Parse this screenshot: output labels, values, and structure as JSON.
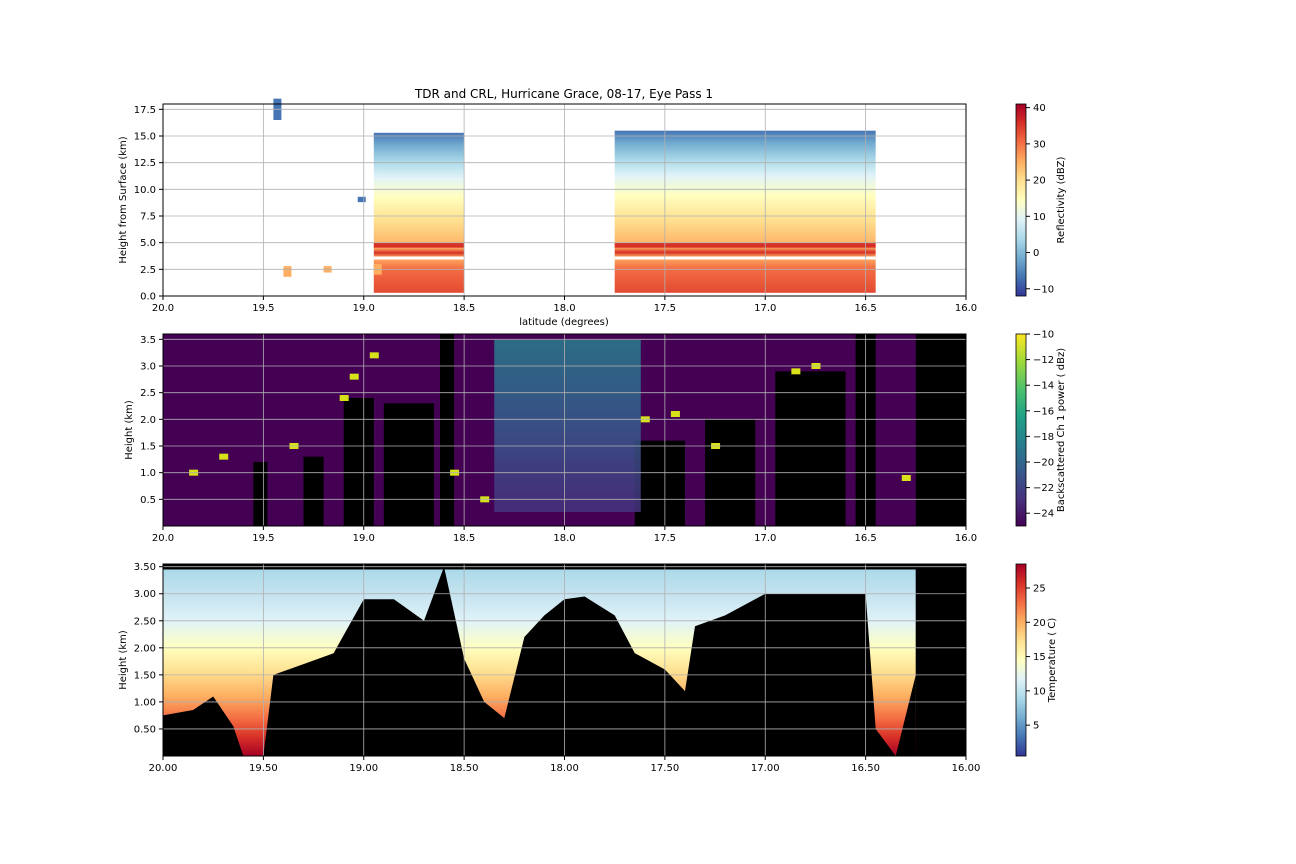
{
  "chart_data": [
    {
      "type": "heatmap",
      "title": "TDR and CRL, Hurricane Grace, 08-17, Eye Pass 1",
      "xlabel": "latitude (degrees)",
      "ylabel": "Height from Surface (km)",
      "xlim": [
        20.0,
        16.0
      ],
      "ylim": [
        0.0,
        18.0
      ],
      "xticks": [
        "20.0",
        "19.5",
        "19.0",
        "18.5",
        "18.0",
        "17.5",
        "17.0",
        "16.5",
        "16.0"
      ],
      "yticks": [
        "0.0",
        "2.5",
        "5.0",
        "7.5",
        "10.0",
        "12.5",
        "15.0",
        "17.5"
      ],
      "grid": true,
      "colorbar": {
        "label": "Reflectivity (dBZ)",
        "range": [
          -12,
          41
        ],
        "ticks": [
          "−10",
          "0",
          "10",
          "20",
          "30",
          "40"
        ],
        "colormap": "RdYlBu_r"
      },
      "blocks": [
        {
          "lat_from": 18.95,
          "lat_to": 18.5,
          "top_km": 15.3
        },
        {
          "lat_from": 17.75,
          "lat_to": 16.45,
          "top_km": 15.5
        }
      ]
    },
    {
      "type": "heatmap",
      "xlabel": "",
      "ylabel": "Height (km)",
      "xlim": [
        20.0,
        16.0
      ],
      "ylim": [
        0.0,
        3.6
      ],
      "xticks": [
        "20.0",
        "19.5",
        "19.0",
        "18.5",
        "18.0",
        "17.5",
        "17.0",
        "16.5",
        "16.0"
      ],
      "yticks": [
        "0.5",
        "1.0",
        "1.5",
        "2.0",
        "2.5",
        "3.0",
        "3.5"
      ],
      "grid": true,
      "colorbar": {
        "label": "Backscattered Ch 1 power ( dBz)",
        "range": [
          -25,
          -10
        ],
        "ticks": [
          "−24",
          "−22",
          "−20",
          "−18",
          "−16",
          "−14",
          "−12",
          "−10"
        ],
        "colormap": "viridis"
      },
      "no_data_after_lat": 16.25
    },
    {
      "type": "heatmap",
      "xlabel": "",
      "ylabel": "Height (km)",
      "xlim": [
        20.0,
        16.0
      ],
      "ylim": [
        0.0,
        3.55
      ],
      "xticks": [
        "20.00",
        "19.50",
        "19.00",
        "18.50",
        "18.00",
        "17.50",
        "17.00",
        "16.50",
        "16.00"
      ],
      "yticks": [
        "0.50",
        "1.00",
        "1.50",
        "2.00",
        "2.50",
        "3.00",
        "3.50"
      ],
      "grid": true,
      "colorbar": {
        "label": "Temperature ( C)",
        "range": [
          0.5,
          28.5
        ],
        "ticks": [
          "5",
          "10",
          "15",
          "20",
          "25"
        ],
        "colormap": "RdYlBu_r"
      },
      "surface_km": [
        [
          20.0,
          0.75
        ],
        [
          19.85,
          0.85
        ],
        [
          19.75,
          1.1
        ],
        [
          19.65,
          0.55
        ],
        [
          19.6,
          0.0
        ],
        [
          19.5,
          0.0
        ],
        [
          19.45,
          1.5
        ],
        [
          19.3,
          1.7
        ],
        [
          19.15,
          1.9
        ],
        [
          19.0,
          2.9
        ],
        [
          18.85,
          2.9
        ],
        [
          18.7,
          2.5
        ],
        [
          18.6,
          3.5
        ],
        [
          18.5,
          1.8
        ],
        [
          18.4,
          1.0
        ],
        [
          18.3,
          0.7
        ],
        [
          18.2,
          2.2
        ],
        [
          18.1,
          2.6
        ],
        [
          18.0,
          2.9
        ],
        [
          17.9,
          2.95
        ],
        [
          17.75,
          2.6
        ],
        [
          17.65,
          1.9
        ],
        [
          17.5,
          1.6
        ],
        [
          17.4,
          1.2
        ],
        [
          17.35,
          2.4
        ],
        [
          17.2,
          2.6
        ],
        [
          17.0,
          3.0
        ],
        [
          16.8,
          3.0
        ],
        [
          16.5,
          3.0
        ],
        [
          16.45,
          0.5
        ],
        [
          16.35,
          0.0
        ],
        [
          16.25,
          1.5
        ]
      ],
      "no_data_after_lat": 16.25
    }
  ],
  "colors": {
    "heatmap_background": "#440154",
    "no_data": "#000000",
    "grid": "#b0b0b0"
  }
}
